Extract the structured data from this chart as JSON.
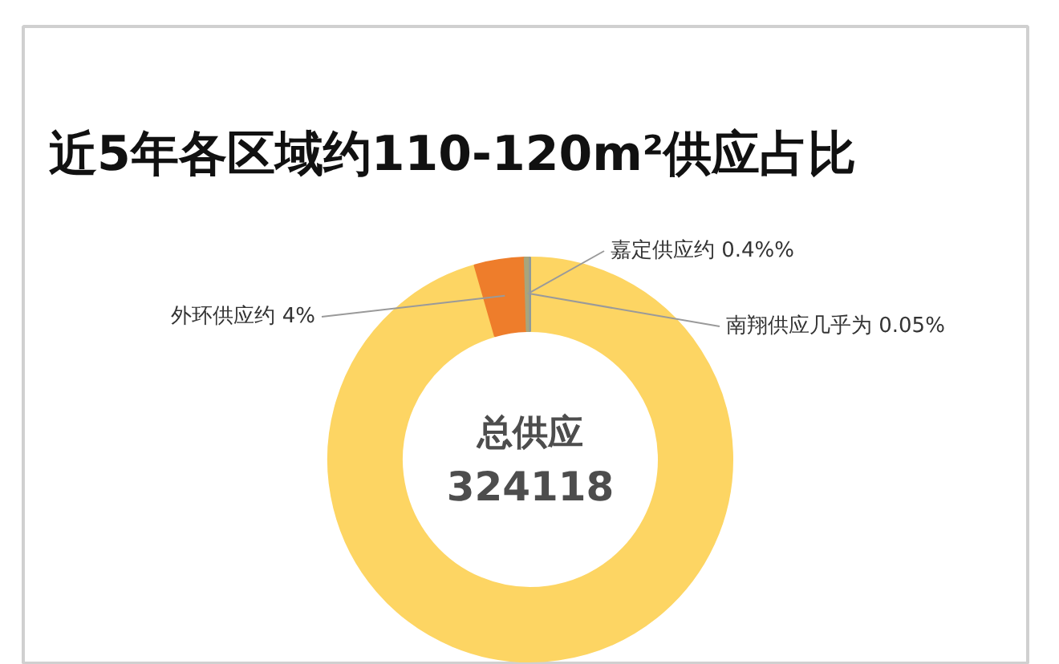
{
  "chart_data": {
    "type": "donut",
    "title": "近5年各区域约110-120m²供应占比",
    "categories": [
      null,
      "外环供应约",
      "嘉定供应约",
      "南翔供应几乎为"
    ],
    "values": [
      95.55,
      4,
      0.4,
      0.05
    ],
    "colors": [
      "#fdd563",
      "#ee7d2b",
      "#a8a57c",
      "#8f9a9a"
    ],
    "value_labels": [
      null,
      "4%",
      "0.4%%",
      "0.05%"
    ],
    "annotations": [
      "总供应",
      "324118"
    ]
  }
}
